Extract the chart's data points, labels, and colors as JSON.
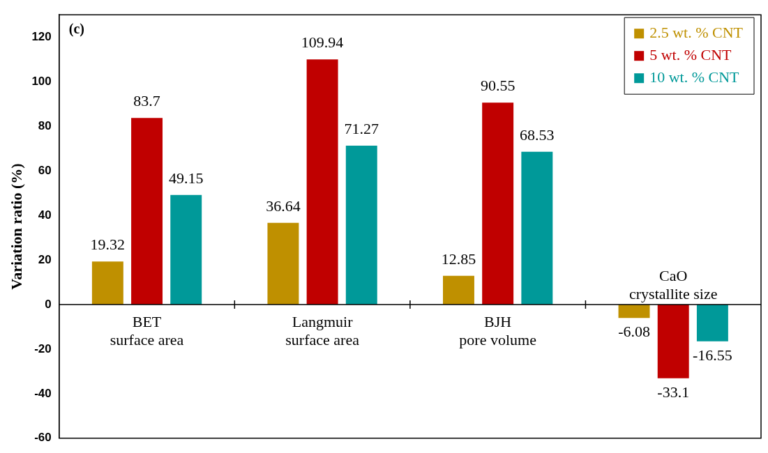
{
  "chart_data": {
    "type": "bar",
    "ylabel": "Variation ratio (%)",
    "annotations": [
      "(c)"
    ],
    "categories": [
      "BET\nsurface area",
      "Langmuir\nsurface area",
      "BJH\npore volume",
      "CaO\ncrystallite size"
    ],
    "series": [
      {
        "name": "2.5 wt. % CNT",
        "color": "#bf9000",
        "values": [
          19.32,
          36.64,
          12.85,
          -6.08
        ]
      },
      {
        "name": "5 wt. % CNT",
        "color": "#c00000",
        "values": [
          83.7,
          109.94,
          90.55,
          -33.1
        ]
      },
      {
        "name": "10 wt. % CNT",
        "color": "#009999",
        "values": [
          49.15,
          71.27,
          68.53,
          -16.55
        ]
      }
    ],
    "ylim": [
      -60,
      130
    ],
    "yticks": [
      -60,
      -40,
      -20,
      0,
      20,
      40,
      60,
      80,
      100,
      120
    ],
    "grid": false,
    "legend": "top right",
    "data_labels": true
  }
}
